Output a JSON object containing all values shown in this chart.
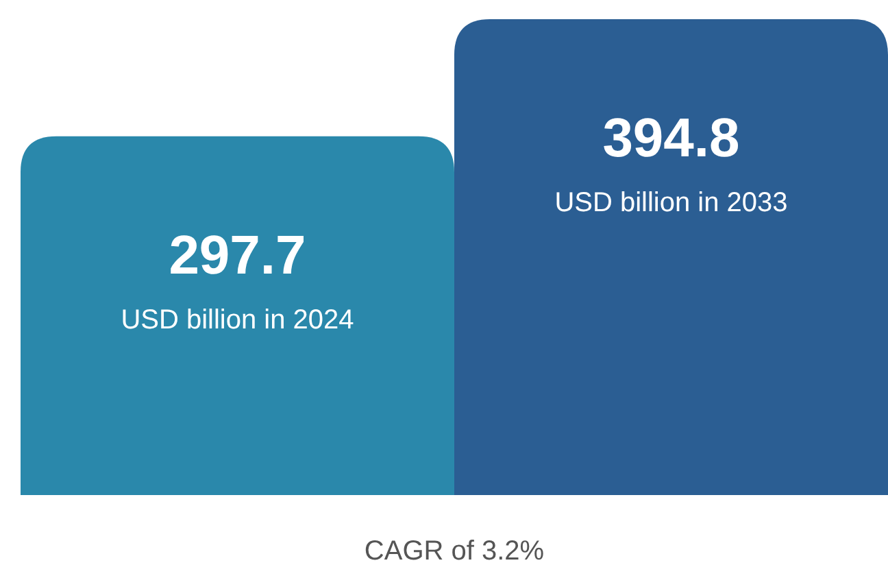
{
  "chart_data": {
    "type": "bar",
    "categories": [
      "USD billion in 2024",
      "USD billion in 2033"
    ],
    "values": [
      297.7,
      394.8
    ],
    "colors": [
      "#2a88ab",
      "#2b5e93"
    ],
    "data_labels": true,
    "annotations": [
      "CAGR of 3.2%"
    ]
  }
}
